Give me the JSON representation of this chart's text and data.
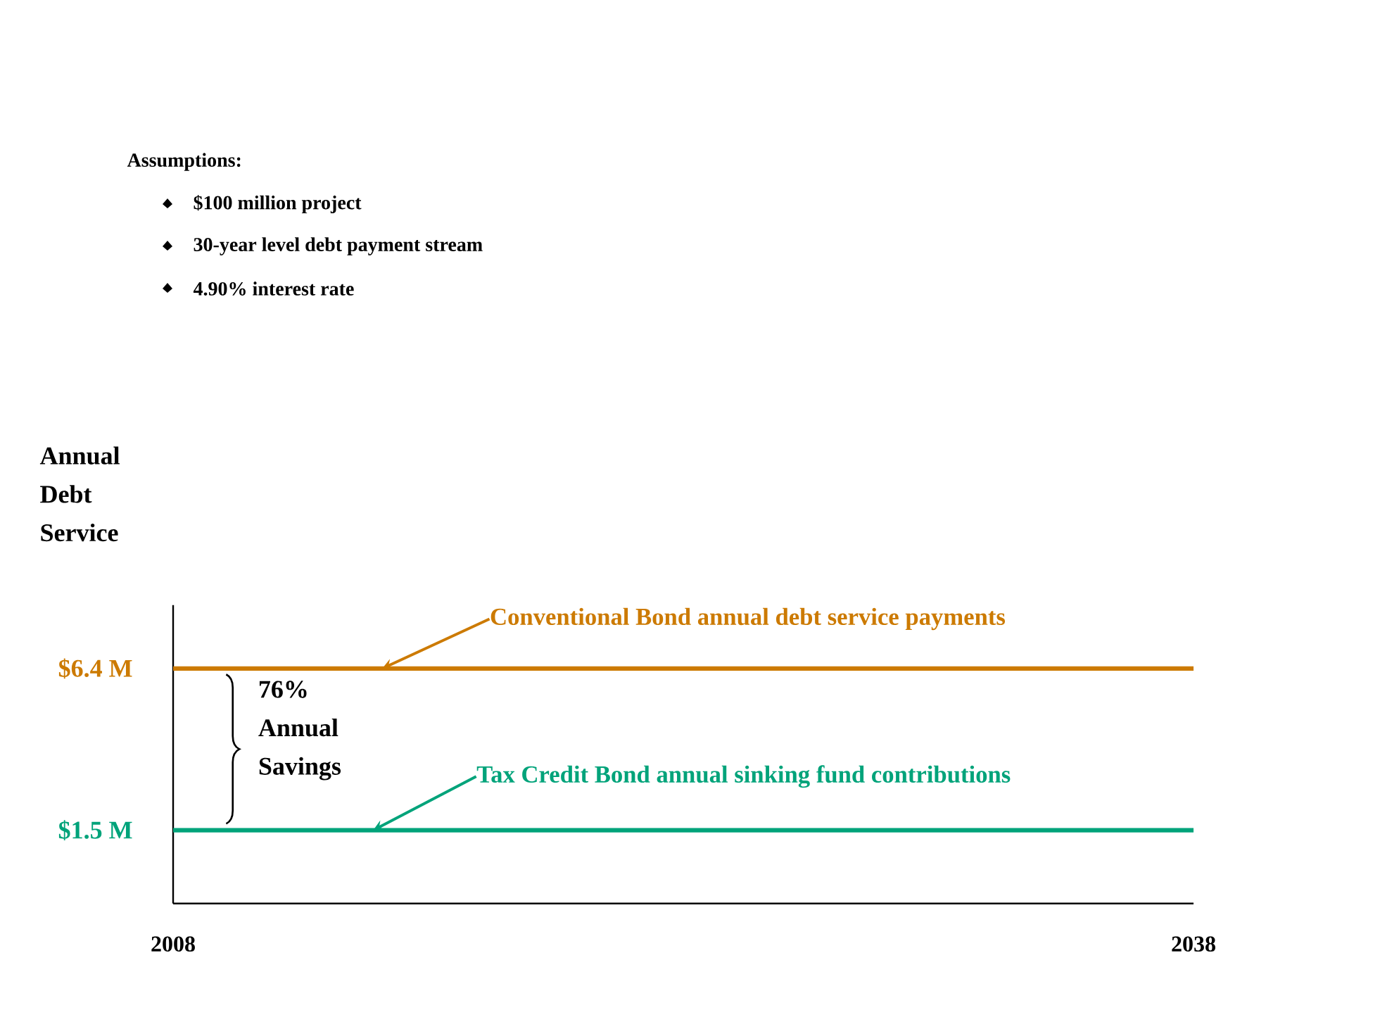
{
  "chart_data": {
    "type": "line",
    "ylabel": "Annual Debt Service",
    "x": [
      2008,
      2038
    ],
    "xlim": [
      2008,
      2038
    ],
    "xticks": [
      2008,
      2038
    ],
    "ylim": [
      -0.72,
      8.32
    ],
    "yticks": [
      {
        "value": 6.4,
        "label": "$6.4 M"
      },
      {
        "value": 1.5,
        "label": "$1.5 M"
      }
    ],
    "series": [
      {
        "name": "Conventional Bond annual debt service payments",
        "color": "#cc7a00",
        "values": [
          6.4,
          6.4
        ]
      },
      {
        "name": "Tax Credit Bond annual sinking fund contributions",
        "color": "#00a37a",
        "values": [
          1.5,
          1.5
        ]
      }
    ],
    "annotations": [
      "Assumptions:",
      "$100 million project",
      "30-year level debt payment stream",
      "4.90% interest rate",
      "76% Annual Savings"
    ],
    "marker": "none",
    "line_style": "solid"
  }
}
